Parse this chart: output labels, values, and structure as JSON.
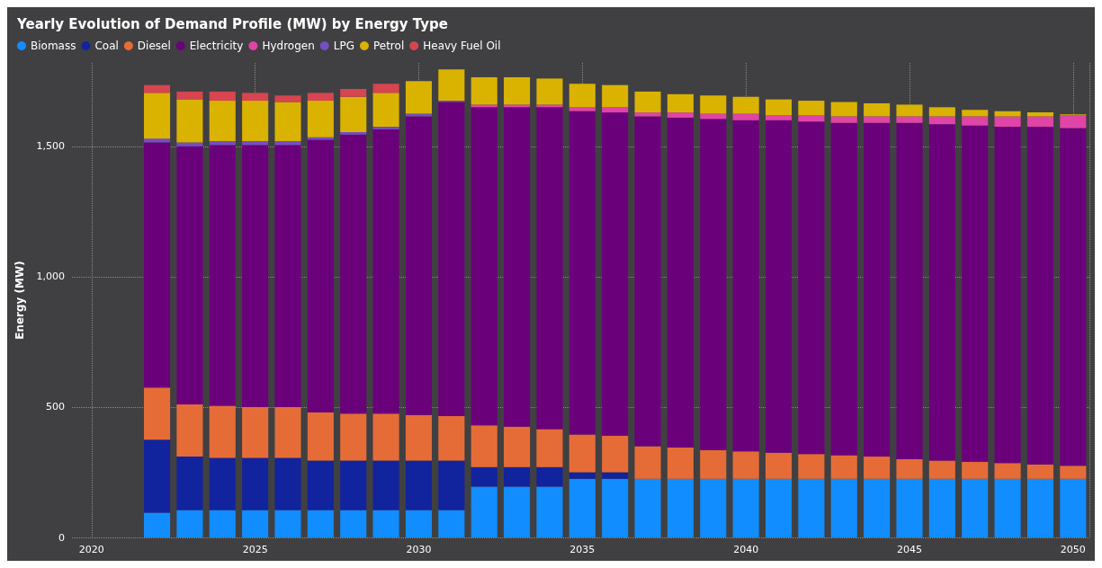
{
  "chart_data": {
    "type": "bar",
    "title": "Yearly Evolution of Demand Profile (MW) by Energy Type",
    "ylabel": "Energy (MW)",
    "stacked": true,
    "legend": "top left",
    "grid": true,
    "x": [
      2022,
      2023,
      2024,
      2025,
      2026,
      2027,
      2028,
      2029,
      2030,
      2031,
      2032,
      2033,
      2034,
      2035,
      2036,
      2037,
      2038,
      2039,
      2040,
      2041,
      2042,
      2043,
      2044,
      2045,
      2046,
      2047,
      2048,
      2049,
      2050
    ],
    "xlim": [
      2019.4,
      2050.5
    ],
    "xticks": [
      2020,
      2025,
      2030,
      2035,
      2040,
      2045,
      2050
    ],
    "ylim": [
      0,
      1820
    ],
    "yticks": [
      0,
      500,
      {
        "value": 1000,
        "label": "1,000"
      },
      {
        "value": 1500,
        "label": "1,500"
      }
    ],
    "series": [
      {
        "name": "Biomass",
        "color": "#118dff",
        "values": [
          95,
          105,
          105,
          105,
          105,
          105,
          105,
          105,
          105,
          105,
          195,
          195,
          195,
          225,
          225,
          225,
          225,
          225,
          225,
          225,
          225,
          225,
          225,
          225,
          225,
          225,
          225,
          225,
          225
        ]
      },
      {
        "name": "Coal",
        "color": "#12239e",
        "values": [
          280,
          205,
          200,
          200,
          200,
          190,
          190,
          190,
          190,
          190,
          75,
          75,
          75,
          25,
          25,
          0,
          0,
          0,
          0,
          0,
          0,
          0,
          0,
          0,
          0,
          0,
          0,
          0,
          0
        ]
      },
      {
        "name": "Diesel",
        "color": "#e66c37",
        "values": [
          200,
          200,
          200,
          195,
          195,
          185,
          180,
          180,
          175,
          170,
          160,
          155,
          145,
          145,
          140,
          125,
          120,
          110,
          105,
          100,
          95,
          90,
          85,
          75,
          70,
          65,
          60,
          55,
          50
        ]
      },
      {
        "name": "Electricity",
        "color": "#6b007b",
        "values": [
          940,
          990,
          1000,
          1005,
          1005,
          1045,
          1070,
          1090,
          1145,
          1205,
          1220,
          1225,
          1235,
          1240,
          1240,
          1265,
          1265,
          1270,
          1270,
          1275,
          1275,
          1275,
          1280,
          1290,
          1290,
          1290,
          1290,
          1295,
          1295
        ]
      },
      {
        "name": "Hydrogen",
        "color": "#e044a7",
        "values": [
          0,
          0,
          0,
          0,
          0,
          0,
          0,
          0,
          0,
          0,
          10,
          10,
          10,
          15,
          20,
          15,
          20,
          20,
          25,
          20,
          25,
          25,
          25,
          25,
          30,
          35,
          40,
          40,
          50
        ]
      },
      {
        "name": "LPG",
        "color": "#744ec2",
        "values": [
          15,
          15,
          15,
          15,
          15,
          10,
          10,
          10,
          10,
          5,
          0,
          0,
          0,
          0,
          0,
          0,
          0,
          0,
          0,
          0,
          0,
          0,
          0,
          0,
          0,
          0,
          0,
          0,
          0
        ]
      },
      {
        "name": "Petrol",
        "color": "#d9b300",
        "values": [
          175,
          165,
          155,
          155,
          150,
          140,
          135,
          130,
          125,
          120,
          105,
          105,
          100,
          90,
          85,
          80,
          70,
          70,
          65,
          60,
          55,
          55,
          50,
          45,
          35,
          25,
          20,
          15,
          3
        ]
      },
      {
        "name": "Heavy Fuel Oil",
        "color": "#d64550",
        "values": [
          30,
          30,
          35,
          30,
          25,
          30,
          30,
          35,
          0,
          0,
          0,
          0,
          0,
          0,
          0,
          0,
          0,
          0,
          0,
          0,
          0,
          0,
          0,
          0,
          0,
          0,
          0,
          0,
          0
        ]
      }
    ]
  }
}
